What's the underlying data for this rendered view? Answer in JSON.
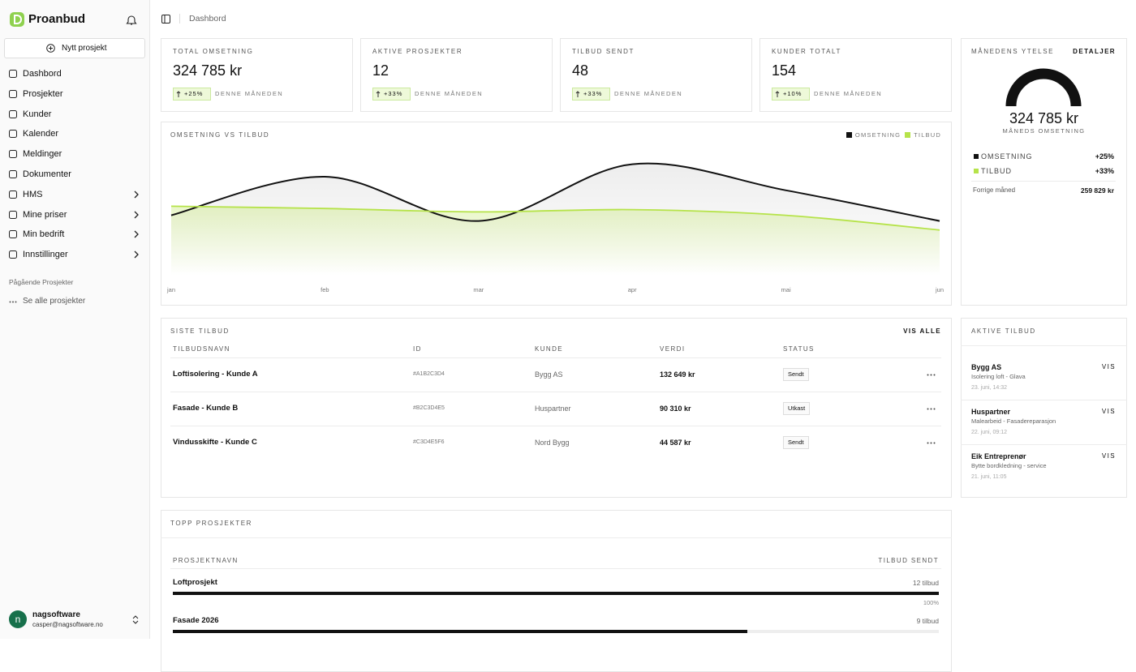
{
  "sidebar": {
    "brand": "Proanbud",
    "new_project": "Nytt prosjekt",
    "nav": [
      {
        "label": "Dashbord",
        "expandable": false
      },
      {
        "label": "Prosjekter",
        "expandable": false
      },
      {
        "label": "Kunder",
        "expandable": false
      },
      {
        "label": "Kalender",
        "expandable": false
      },
      {
        "label": "Meldinger",
        "expandable": false
      },
      {
        "label": "Dokumenter",
        "expandable": false
      },
      {
        "label": "HMS",
        "expandable": true
      },
      {
        "label": "Mine priser",
        "expandable": true
      },
      {
        "label": "Min bedrift",
        "expandable": true
      },
      {
        "label": "Innstillinger",
        "expandable": true
      }
    ],
    "section_title": "Pågående Prosjekter",
    "see_all": "Se alle prosjekter",
    "user": {
      "initial": "n",
      "name": "nagsoftware",
      "email": "casper@nagsoftware.no"
    }
  },
  "header": {
    "breadcrumb": "Dashbord"
  },
  "stats": [
    {
      "label": "TOTAL OMSETNING",
      "value": "324 785 kr",
      "change": "+25%",
      "period": "DENNE MÅNEDEN"
    },
    {
      "label": "AKTIVE PROSJEKTER",
      "value": "12",
      "change": "+33%",
      "period": "DENNE MÅNEDEN"
    },
    {
      "label": "TILBUD SENDT",
      "value": "48",
      "change": "+33%",
      "period": "DENNE MÅNEDEN"
    },
    {
      "label": "KUNDER TOTALT",
      "value": "154",
      "change": "+10%",
      "period": "DENNE MÅNEDEN"
    }
  ],
  "chart": {
    "type": "line",
    "title": "OMSETNING VS TILBUD",
    "categories": [
      "jan",
      "feb",
      "mar",
      "apr",
      "mai",
      "jun"
    ],
    "series": [
      {
        "name": "OMSETNING",
        "color": "#111111",
        "values": [
          46,
          80,
          41,
          91,
          68,
          41
        ]
      },
      {
        "name": "TILBUD",
        "color": "#b6e34a",
        "values": [
          54,
          52,
          49,
          51,
          46,
          33
        ]
      }
    ],
    "ylim": [
      0,
      100
    ],
    "legend": "top-right"
  },
  "performance": {
    "title": "MÅNEDENS YTELSE",
    "link": "DETALJER",
    "value": "324 785 kr",
    "caption": "MÅNEDS OMSETNING",
    "rows": [
      {
        "name": "OMSETNING",
        "change": "+25%",
        "color": "#111111"
      },
      {
        "name": "TILBUD",
        "change": "+33%",
        "color": "#b6e34a"
      }
    ],
    "previous_label": "Forrige måned",
    "previous_value": "259 829 kr"
  },
  "recent_offers": {
    "title": "SISTE TILBUD",
    "link": "VIS ALLE",
    "columns": [
      "TILBUDSNAVN",
      "ID",
      "KUNDE",
      "VERDI",
      "STATUS"
    ],
    "rows": [
      [
        "Loftisolering - Kunde A",
        "#A1B2C3D4",
        "Bygg AS",
        "132 649 kr",
        "Sendt"
      ],
      [
        "Fasade - Kunde B",
        "#B2C3D4E5",
        "Huspartner",
        "90 310 kr",
        "Utkast"
      ],
      [
        "Vindusskifte - Kunde C",
        "#C3D4E5F6",
        "Nord Bygg",
        "44 587 kr",
        "Sendt"
      ]
    ]
  },
  "active_offers": {
    "title": "AKTIVE TILBUD",
    "items": [
      {
        "company": "Bygg AS",
        "description": "Isolering loft - Glava",
        "time": "23. juni, 14:32",
        "action": "VIS"
      },
      {
        "company": "Huspartner",
        "description": "Malearbeid - Fasadereparasjon",
        "time": "22. juni, 09:12",
        "action": "VIS"
      },
      {
        "company": "Eik Entreprenør",
        "description": "Bytte bordkledning - service",
        "time": "21. juni, 11:05",
        "action": "VIS"
      }
    ]
  },
  "top_projects": {
    "title": "TOPP PROSJEKTER",
    "columns": [
      "PROSJEKTNAVN",
      "TILBUD SENDT"
    ],
    "projects": [
      {
        "name": "Loftprosjekt",
        "count": "12 tilbud",
        "percent": 100,
        "percent_label": "100%"
      },
      {
        "name": "Fasade 2026",
        "count": "9 tilbud",
        "percent": 75
      }
    ]
  }
}
